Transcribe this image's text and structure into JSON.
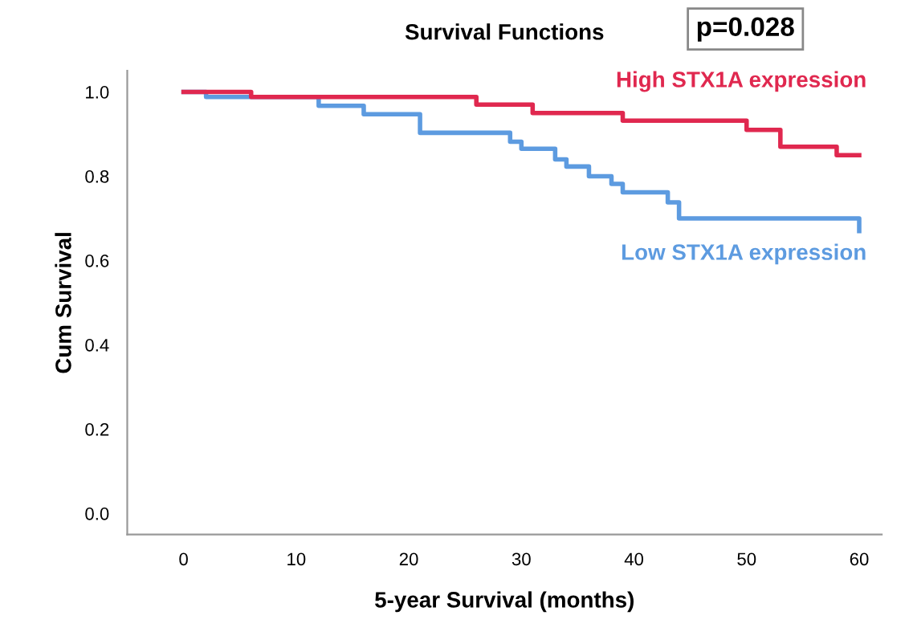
{
  "chart_data": {
    "type": "step",
    "title": "Survival Functions",
    "xlabel": "5-year Survival (months)",
    "ylabel": "Cum Survival",
    "annotations": [
      "p=0.028"
    ],
    "xlim": [
      -5,
      62
    ],
    "xticks": [
      0,
      10,
      20,
      30,
      40,
      50,
      60
    ],
    "ylim": [
      -0.05,
      1.05
    ],
    "yticks": [
      {
        "value": 0,
        "label": "0.0"
      },
      {
        "value": 0.2,
        "label": "0.2"
      },
      {
        "value": 0.4,
        "label": "0.4"
      },
      {
        "value": 0.6,
        "label": "0.6"
      },
      {
        "value": 0.8,
        "label": "0.8"
      },
      {
        "value": 1,
        "label": "1.0"
      }
    ],
    "grid": false,
    "legend": false,
    "series": [
      {
        "name": "High STX1A expression",
        "color": "#e0284f",
        "x": [
          0,
          6,
          26,
          31,
          39,
          50,
          53,
          58,
          60
        ],
        "values": [
          1.0,
          0.988,
          0.97,
          0.95,
          0.932,
          0.91,
          0.87,
          0.85,
          0.85
        ]
      },
      {
        "name": "Low STX1A expression",
        "color": "#5d9be0",
        "x": [
          0,
          2,
          12,
          16,
          21,
          29,
          30,
          33,
          34,
          36,
          38,
          39,
          43,
          44,
          60
        ],
        "values": [
          1.0,
          0.988,
          0.967,
          0.947,
          0.903,
          0.882,
          0.865,
          0.84,
          0.823,
          0.8,
          0.782,
          0.762,
          0.738,
          0.7,
          0.67
        ]
      }
    ]
  }
}
